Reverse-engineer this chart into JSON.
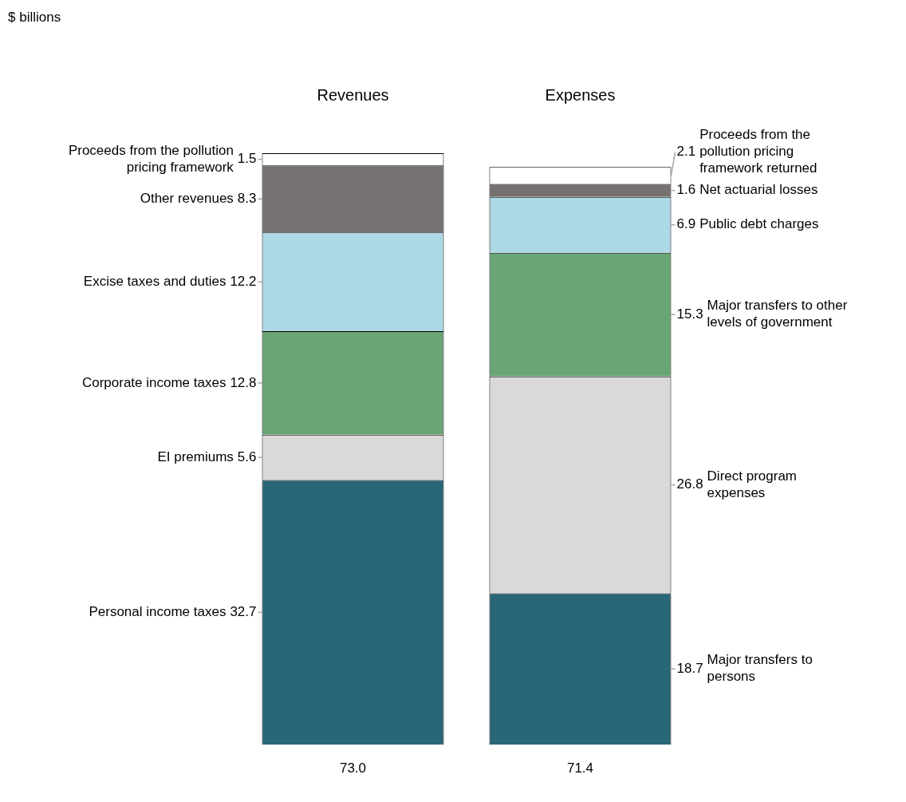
{
  "chart_data": {
    "type": "bar",
    "stacked": true,
    "annotations": [
      "$ billions"
    ],
    "categories": [
      "Revenues",
      "Expenses"
    ],
    "data_labels": true,
    "legend": false,
    "grid": false,
    "totals": [
      "73.0",
      "71.4"
    ],
    "series": [
      {
        "name": "Personal income taxes",
        "color": "#296678",
        "values": [
          32.7,
          null
        ]
      },
      {
        "name": "EI premiums",
        "color": "#d9d9d9",
        "values": [
          5.6,
          null
        ]
      },
      {
        "name": "Corporate income taxes",
        "color": "#6aa575",
        "values": [
          12.8,
          null
        ]
      },
      {
        "name": "Excise taxes and duties",
        "color": "#add8e6",
        "values": [
          12.2,
          null
        ]
      },
      {
        "name": "Other revenues",
        "color": "#767170",
        "values": [
          8.3,
          null
        ]
      },
      {
        "name": "Proceeds from the pollution pricing framework",
        "color": "#ffffff",
        "values": [
          1.5,
          null
        ]
      },
      {
        "name": "Major transfers to persons",
        "color": "#296678",
        "values": [
          null,
          18.7
        ]
      },
      {
        "name": "Direct program expenses",
        "color": "#d9d9d9",
        "values": [
          null,
          26.8
        ]
      },
      {
        "name": "Major transfers to other levels of government",
        "color": "#6aa575",
        "values": [
          null,
          15.3
        ]
      },
      {
        "name": "Public debt charges",
        "color": "#add8e6",
        "values": [
          null,
          6.9
        ]
      },
      {
        "name": "Net actuarial losses",
        "color": "#767170",
        "values": [
          null,
          1.6
        ]
      },
      {
        "name": "Proceeds from the pollution pricing framework returned",
        "color": "#ffffff",
        "values": [
          null,
          2.1
        ]
      }
    ]
  }
}
